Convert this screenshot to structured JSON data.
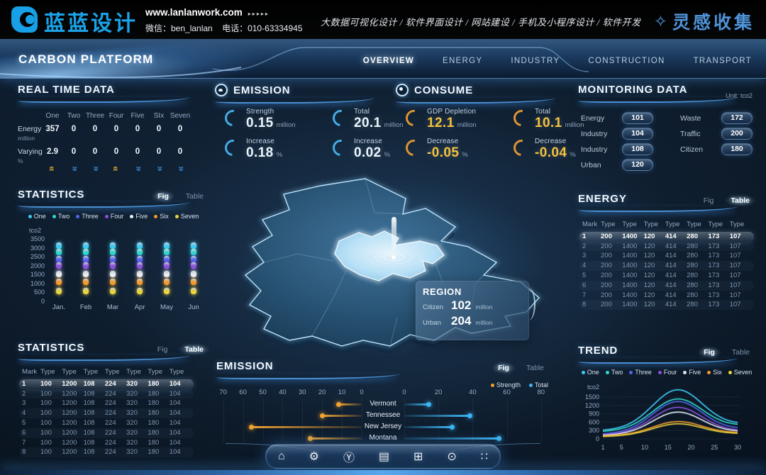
{
  "header": {
    "logo_text": "蓝蓝设计",
    "website": "www.lanlanwork.com",
    "website_arrows": "▸▸▸▸▸",
    "wechat_label": "微信：ben_lanlan",
    "phone_label": "电话：010-63334945",
    "services": "大数据可视化设计 / 软件界面设计 / 网站建设 / 手机及小程序设计 / 软件开发",
    "collect_label": "灵感收集",
    "collect_star": "✧",
    "brand_color": "#17a0e6"
  },
  "nav": {
    "title": "CARBON PLATFORM",
    "tabs": [
      {
        "label": "OVERVIEW",
        "active": true
      },
      {
        "label": "ENERGY",
        "active": false
      },
      {
        "label": "INDUSTRY",
        "active": false
      },
      {
        "label": "CONSTRUCTION",
        "active": false
      },
      {
        "label": "TRANSPORT",
        "active": false
      }
    ]
  },
  "realtime": {
    "title": "REAL TIME DATA",
    "columns": [
      "One",
      "Two",
      "Three",
      "Four",
      "Five",
      "SIx",
      "Seven"
    ],
    "rows": [
      {
        "label": "Energy",
        "unit": "million",
        "values": [
          "357",
          "0",
          "0",
          "0",
          "0",
          "0",
          "0"
        ]
      },
      {
        "label": "Varying",
        "unit": "%",
        "values": [
          "2.9",
          "0",
          "0",
          "0",
          "0",
          "0",
          "0"
        ]
      }
    ],
    "trend_arrows": [
      "up",
      "down",
      "down",
      "up",
      "down",
      "down",
      "down"
    ],
    "up_color": "#d8a32e",
    "down_color": "#3f86c8"
  },
  "emission_panel": {
    "title": "EMISSION",
    "accent": "#49b4ee",
    "value_color": "#eaf6ff",
    "stats": [
      {
        "label": "Strength",
        "value": "0.15",
        "unit": "million"
      },
      {
        "label": "Total",
        "value": "20.1",
        "unit": "million"
      },
      {
        "label": "Increase",
        "value": "0.18",
        "unit": "%"
      },
      {
        "label": "Increase",
        "value": "0.02",
        "unit": "%"
      }
    ]
  },
  "consume_panel": {
    "title": "CONSUME",
    "accent": "#e89b33",
    "value_color": "#f4c23d",
    "stats": [
      {
        "label": "GDP Depletion",
        "value": "12.1",
        "unit": "million"
      },
      {
        "label": "Total",
        "value": "10.1",
        "unit": "million"
      },
      {
        "label": "Decrease",
        "value": "-0.05",
        "unit": "%"
      },
      {
        "label": "Decrease",
        "value": "-0.04",
        "unit": "%"
      }
    ]
  },
  "monitoring": {
    "title": "MONITORING DATA",
    "unit_label": "Unit: tco2",
    "left_items": [
      {
        "label": "Energy",
        "value": "101"
      },
      {
        "label": "Industry",
        "value": "104"
      },
      {
        "label": "Industry",
        "value": "108"
      },
      {
        "label": "Urban",
        "value": "120"
      }
    ],
    "right_items": [
      {
        "label": "Waste",
        "value": "172"
      },
      {
        "label": "Traffic",
        "value": "200"
      },
      {
        "label": "Citizen",
        "value": "180"
      }
    ]
  },
  "map": {
    "tooltip": {
      "title": "REGION",
      "rows": [
        {
          "label": "Citizen",
          "value": "102",
          "unit": "million"
        },
        {
          "label": "Urban",
          "value": "204",
          "unit": "million"
        }
      ]
    }
  },
  "statistics_fig": {
    "title": "STATISTICS",
    "toggle": {
      "fig": "Fig",
      "table": "Table",
      "active": "fig"
    }
  },
  "statistics_table": {
    "title": "STATISTICS",
    "toggle": {
      "fig": "Fig",
      "table": "Table",
      "active": "table"
    },
    "headers": [
      "Mark",
      "Type",
      "Type",
      "Type",
      "Type",
      "Type",
      "Type",
      "Type"
    ],
    "highlight_row": 0,
    "rows": [
      [
        "1",
        "100",
        "1200",
        "108",
        "224",
        "320",
        "180",
        "104"
      ],
      [
        "2",
        "100",
        "1200",
        "108",
        "224",
        "320",
        "180",
        "104"
      ],
      [
        "3",
        "100",
        "1200",
        "108",
        "224",
        "320",
        "180",
        "104"
      ],
      [
        "4",
        "100",
        "1200",
        "108",
        "224",
        "320",
        "180",
        "104"
      ],
      [
        "5",
        "100",
        "1200",
        "108",
        "224",
        "320",
        "180",
        "104"
      ],
      [
        "6",
        "100",
        "1200",
        "108",
        "224",
        "320",
        "180",
        "104"
      ],
      [
        "7",
        "100",
        "1200",
        "108",
        "224",
        "320",
        "180",
        "104"
      ],
      [
        "8",
        "100",
        "1200",
        "108",
        "224",
        "320",
        "180",
        "104"
      ]
    ]
  },
  "energy_table": {
    "title": "ENERGY",
    "toggle": {
      "fig": "Fig",
      "table": "Table",
      "active": "table"
    },
    "headers": [
      "Mark",
      "Type",
      "Type",
      "Type",
      "Type",
      "Type",
      "Type",
      "Type"
    ],
    "highlight_row": 0,
    "rows": [
      [
        "1",
        "200",
        "1400",
        "120",
        "414",
        "280",
        "173",
        "107"
      ],
      [
        "2",
        "200",
        "1400",
        "120",
        "414",
        "280",
        "173",
        "107"
      ],
      [
        "3",
        "200",
        "1400",
        "120",
        "414",
        "280",
        "173",
        "107"
      ],
      [
        "4",
        "200",
        "1400",
        "120",
        "414",
        "280",
        "173",
        "107"
      ],
      [
        "5",
        "200",
        "1400",
        "120",
        "414",
        "280",
        "173",
        "107"
      ],
      [
        "6",
        "200",
        "1400",
        "120",
        "414",
        "280",
        "173",
        "107"
      ],
      [
        "7",
        "200",
        "1400",
        "120",
        "414",
        "280",
        "173",
        "107"
      ],
      [
        "8",
        "200",
        "1400",
        "120",
        "414",
        "280",
        "173",
        "107"
      ]
    ]
  },
  "emission_fig": {
    "title": "EMISSION",
    "toggle": {
      "fig": "Fig",
      "table": "Table",
      "active": "fig"
    }
  },
  "trend_panel": {
    "title": "TREND",
    "toggle": {
      "fig": "Fig",
      "table": "Table",
      "active": "fig"
    }
  },
  "dock": {
    "icons": [
      {
        "name": "home-icon",
        "glyph": "⌂"
      },
      {
        "name": "gear-icon",
        "glyph": "⚙"
      },
      {
        "name": "medal-icon",
        "glyph": "Ⓨ"
      },
      {
        "name": "charger-icon",
        "glyph": "▤"
      },
      {
        "name": "monitor-icon",
        "glyph": "⊞"
      },
      {
        "name": "nut-icon",
        "glyph": "⊙"
      },
      {
        "name": "apps-icon",
        "glyph": "∷"
      }
    ]
  },
  "chart_data": [
    {
      "id": "statistics-fig",
      "type": "bar",
      "subtype": "stacked-capsule-columns",
      "title": "STATISTICS",
      "ylabel": "tco2",
      "ylim": [
        0,
        3500
      ],
      "yticks": [
        3500,
        3000,
        2500,
        2000,
        1500,
        1000,
        500,
        0
      ],
      "categories": [
        "Jan.",
        "Feb",
        "Mar",
        "Apr",
        "May",
        "Jun"
      ],
      "series": [
        {
          "name": "One",
          "color": "#3ec9f5",
          "values": [
            3150,
            3150,
            3150,
            3150,
            3150,
            3150
          ]
        },
        {
          "name": "Two",
          "color": "#2edacd",
          "values": [
            2780,
            2780,
            2780,
            2780,
            2780,
            2780
          ]
        },
        {
          "name": "Three",
          "color": "#5166ec",
          "values": [
            2400,
            2400,
            2400,
            2400,
            2400,
            2400
          ]
        },
        {
          "name": "Four",
          "color": "#8a50da",
          "values": [
            2010,
            2010,
            2010,
            2010,
            2010,
            2010
          ]
        },
        {
          "name": "Five",
          "color": "#e9eff7",
          "values": [
            1560,
            1560,
            1560,
            1560,
            1560,
            1560
          ]
        },
        {
          "name": "Six",
          "color": "#f29a2c",
          "values": [
            1130,
            1130,
            1130,
            1130,
            1130,
            1130
          ]
        },
        {
          "name": "Seven",
          "color": "#e9d43c",
          "values": [
            580,
            580,
            580,
            580,
            580,
            580
          ]
        }
      ]
    },
    {
      "id": "emission-fig",
      "type": "bar",
      "subtype": "diverging-lollipop",
      "title": "EMISSION",
      "categories": [
        "Vermont",
        "Tennessee",
        "New Jersey",
        "Montana"
      ],
      "left_axis_ticks": [
        70,
        60,
        50,
        40,
        30,
        20,
        10,
        0
      ],
      "right_axis_ticks": [
        0,
        20,
        40,
        60,
        80
      ],
      "series": [
        {
          "name": "Strength",
          "color": "#eea231",
          "side": "left",
          "values": [
            12,
            20,
            56,
            26
          ]
        },
        {
          "name": "Total",
          "color": "#3db4f2",
          "side": "right",
          "values": [
            14,
            38,
            28,
            55
          ]
        }
      ]
    },
    {
      "id": "trend",
      "type": "line",
      "title": "TREND",
      "ylabel": "tco2",
      "ylim": [
        0,
        1800
      ],
      "yticks": [
        1500,
        1200,
        900,
        600,
        300,
        0
      ],
      "xticks": [
        1,
        5,
        10,
        15,
        20,
        25,
        30
      ],
      "x_range": [
        1,
        30
      ],
      "shape": "bell curves peaking near x=17",
      "series": [
        {
          "name": "One",
          "color": "#3ec9f5",
          "start": 300,
          "end": 520,
          "peak": 1760
        },
        {
          "name": "Two",
          "color": "#2edacd",
          "start": 260,
          "end": 470,
          "peak": 1430
        },
        {
          "name": "Three",
          "color": "#5166ec",
          "start": 170,
          "end": 350,
          "peak": 1340
        },
        {
          "name": "Four",
          "color": "#8a50da",
          "start": 140,
          "end": 280,
          "peak": 1130
        },
        {
          "name": "Five",
          "color": "#dde6f0",
          "start": 120,
          "end": 250,
          "peak": 960
        },
        {
          "name": "Six",
          "color": "#f29a2c",
          "start": 100,
          "end": 210,
          "peak": 620
        },
        {
          "name": "Seven",
          "color": "#e9d43c",
          "start": 80,
          "end": 180,
          "peak": 540
        }
      ]
    }
  ]
}
